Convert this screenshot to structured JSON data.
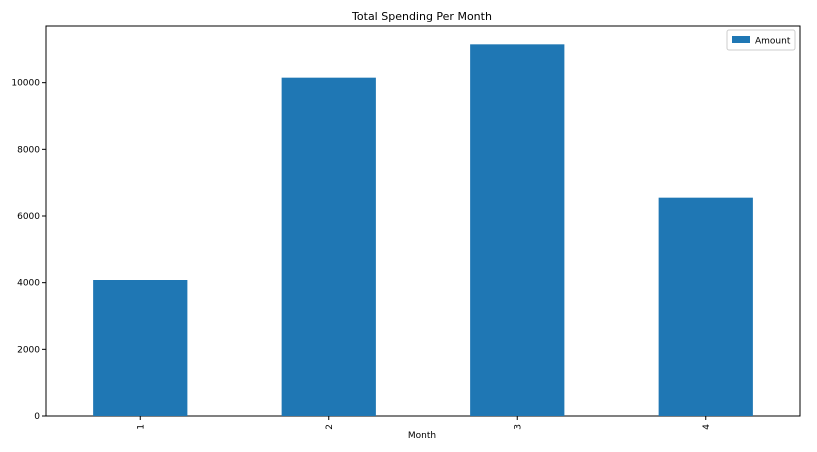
{
  "chart_data": {
    "type": "bar",
    "title": "Total Spending Per Month",
    "xlabel": "Month",
    "ylabel": "",
    "categories": [
      "1",
      "2",
      "3",
      "4"
    ],
    "series": [
      {
        "name": "Amount",
        "values": [
          4080,
          10150,
          11150,
          6550
        ]
      }
    ],
    "ylim": [
      0,
      11700
    ],
    "yticks": [
      0,
      2000,
      4000,
      6000,
      8000,
      10000
    ],
    "ytick_labels": [
      "0",
      "2000",
      "4000",
      "6000",
      "8000",
      "10000"
    ],
    "grid": false,
    "legend_position": "top-right",
    "bar_color": "#1f77b4",
    "x_tick_rotation": "vertical"
  }
}
